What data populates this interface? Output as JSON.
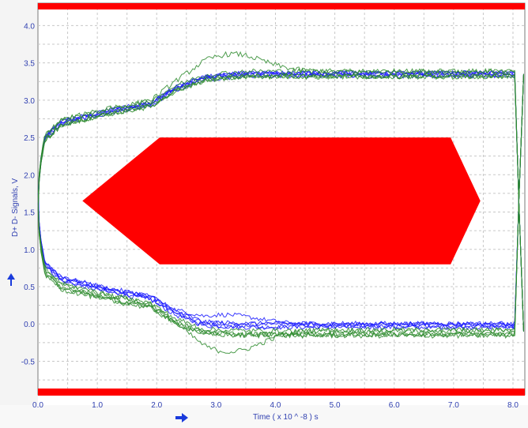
{
  "chart_data": {
    "type": "line",
    "title": "",
    "xlabel": "Time  ( x 10 ^ -8 ) s",
    "ylabel": "D+ D- Signals, V",
    "xlim": [
      0.0,
      8.2
    ],
    "ylim": [
      -0.95,
      4.3
    ],
    "x_ticks": [
      "0.0",
      "1.0",
      "2.0",
      "3.0",
      "4.0",
      "5.0",
      "6.0",
      "7.0",
      "8.0"
    ],
    "y_ticks": [
      "-0.5",
      "0.0",
      "0.5",
      "1.0",
      "1.5",
      "2.0",
      "2.5",
      "3.0",
      "3.5",
      "4.0"
    ],
    "grid": true,
    "mask": {
      "type": "eye-mask hexagon",
      "color": "#ff0000",
      "vertices": [
        [
          0.75,
          1.65
        ],
        [
          2.05,
          2.5
        ],
        [
          6.95,
          2.5
        ],
        [
          7.45,
          1.65
        ],
        [
          6.95,
          0.8
        ],
        [
          2.05,
          0.8
        ]
      ]
    },
    "limit_bars": {
      "color": "#ff0000",
      "upper": 4.3,
      "lower": -0.95
    },
    "series": [
      {
        "color": "#1a1aff",
        "values_desc": "rising edge: 0.0 → 3.35 by ~2.8, high level ~3.35"
      },
      {
        "color": "#1a1aff",
        "values_desc": "falling edge: 3.35 → 0.0 by ~2.8, low level ~0.0"
      },
      {
        "color": "#2e8b2e",
        "values_desc": "rising edge with overshoot"
      },
      {
        "color": "#2e8b2e",
        "values_desc": "falling edge with undershoot"
      }
    ],
    "rise_profile": [
      [
        0.0,
        1.65
      ],
      [
        0.03,
        2.1
      ],
      [
        0.12,
        2.5
      ],
      [
        0.4,
        2.7
      ],
      [
        1.2,
        2.85
      ],
      [
        1.9,
        2.95
      ],
      [
        2.3,
        3.15
      ],
      [
        2.8,
        3.3
      ],
      [
        3.5,
        3.35
      ],
      [
        8.0,
        3.35
      ]
    ],
    "fall_profile": [
      [
        0.0,
        1.65
      ],
      [
        0.03,
        1.2
      ],
      [
        0.12,
        0.8
      ],
      [
        0.4,
        0.6
      ],
      [
        1.2,
        0.45
      ],
      [
        1.9,
        0.35
      ],
      [
        2.3,
        0.15
      ],
      [
        2.8,
        0.0
      ],
      [
        3.5,
        -0.02
      ],
      [
        8.0,
        -0.02
      ]
    ],
    "colors": {
      "mask": "#ff0000",
      "signal_blue": "#1a1aff",
      "signal_green": "#2e8b2e",
      "tick_text": "#2f3fb0",
      "grid": "#c8c8c8",
      "arrow": "#1a3bdc",
      "axis_frame": "#7a7a7a",
      "side_panel": "#f4f4f4"
    },
    "icons": {
      "x_arrow": "right-arrow-icon",
      "y_arrow": "up-arrow-icon"
    }
  }
}
